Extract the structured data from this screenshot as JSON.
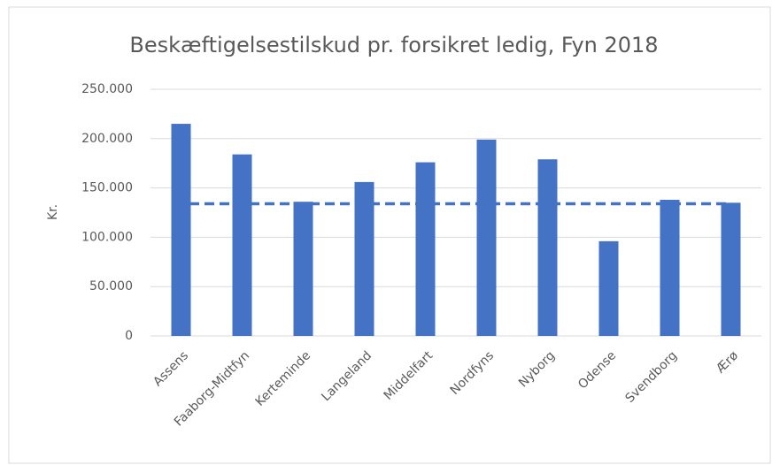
{
  "chart_data": {
    "type": "bar",
    "title": "Beskæftigelsestilskud pr. forsikret ledig, Fyn 2018",
    "ylabel": "Kr.",
    "categories": [
      "Assens",
      "Faaborg-Midtfyn",
      "Kerteminde",
      "Langeland",
      "Middelfart",
      "Nordfyns",
      "Nyborg",
      "Odense",
      "Svendborg",
      "Ærø"
    ],
    "values": [
      215000,
      184000,
      136000,
      156000,
      176000,
      199000,
      179000,
      96000,
      138000,
      135000
    ],
    "color": "#4472c4",
    "reference_line": 134000,
    "ylim": [
      0,
      250000
    ],
    "yticks": [
      0,
      {
        "value": 50000,
        "label": "50.000"
      },
      {
        "value": 100000,
        "label": "100.000"
      },
      {
        "value": 150000,
        "label": "150.000"
      },
      {
        "value": 200000,
        "label": "200.000"
      },
      {
        "value": 250000,
        "label": "250.000"
      }
    ],
    "grid": true
  }
}
